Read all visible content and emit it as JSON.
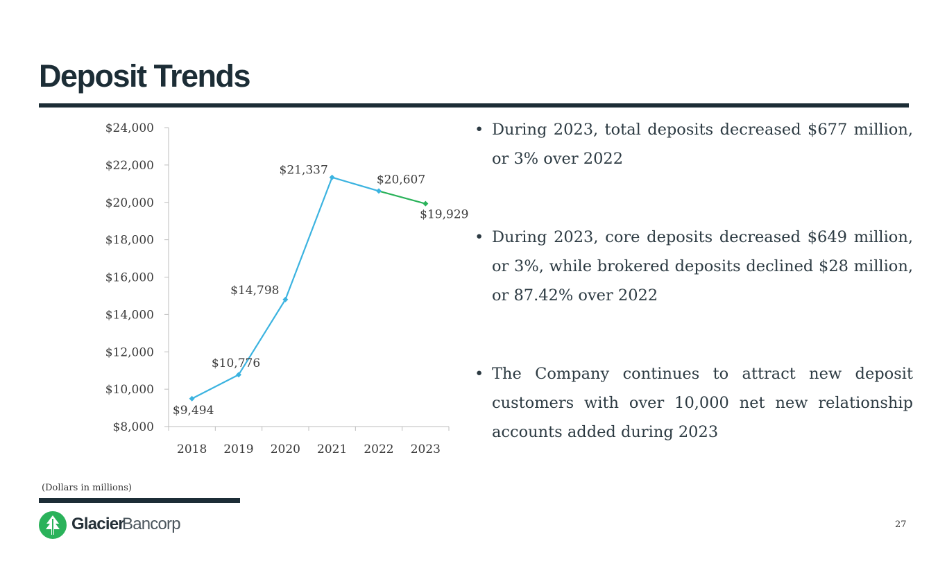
{
  "title": "Deposit Trends",
  "chart_data": {
    "type": "line",
    "categories": [
      "2018",
      "2019",
      "2020",
      "2021",
      "2022",
      "2023"
    ],
    "values": [
      9494,
      10776,
      14798,
      21337,
      20607,
      19929
    ],
    "data_labels": [
      "$9,494",
      "$10,776",
      "$14,798",
      "$21,337",
      "$20,607",
      "$19,929"
    ],
    "ylim": [
      8000,
      24000
    ],
    "yticks": [
      8000,
      10000,
      12000,
      14000,
      16000,
      18000,
      20000,
      22000,
      24000
    ],
    "ytick_labels": [
      "$8,000",
      "$10,000",
      "$12,000",
      "$14,000",
      "$16,000",
      "$18,000",
      "$20,000",
      "$22,000",
      "$24,000"
    ],
    "line_color": "#3bb3e0",
    "last_segment_color": "#2ab25a",
    "title": "",
    "xlabel": "",
    "ylabel": ""
  },
  "bullets": [
    "During 2023, total deposits decreased $677 million, or 3% over 2022",
    "During 2023, core deposits decreased $649 million, or 3%, while brokered deposits declined $28 million, or 87.42% over 2022",
    "The Company continues to attract new deposit customers with over 10,000 net new relationship accounts added during 2023"
  ],
  "footnote": "(Dollars in millions)",
  "logo": {
    "name": "Glacier",
    "sub": "Bancorp",
    "icon": "tree-logo-icon",
    "color": "#2ab25a"
  },
  "page_number": "27"
}
